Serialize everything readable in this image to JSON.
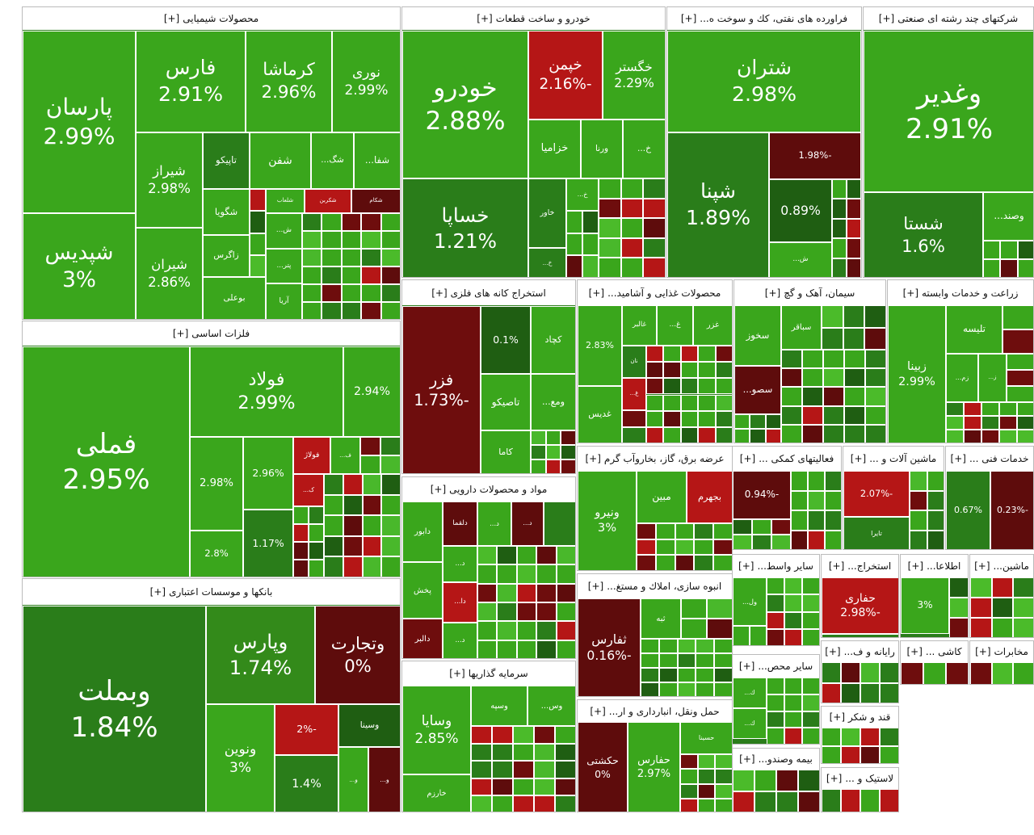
{
  "chart_data": {
    "type": "treemap",
    "expand_label": "[+]",
    "groups": [
      {
        "name": "محصولات شیمیایی",
        "categories": [
          "پارسان",
          "شپدیس",
          "فارس",
          "کرماشا",
          "نوری",
          "شیراز",
          "شیران",
          "تاپیکو",
          "شگویا",
          "زاگرس",
          "بوعلی",
          "شفن",
          "شگ...",
          "شفا...",
          "شلعاب",
          "شکربن",
          "شکام",
          "ش...",
          "پتر...",
          "آریا"
        ],
        "values": [
          2.99,
          3,
          2.91,
          2.96,
          2.99,
          2.98,
          2.86,
          null,
          null,
          null,
          null,
          null,
          null,
          null,
          null,
          null,
          null,
          null,
          null,
          null
        ],
        "value_labels": [
          "2.99%",
          "3%",
          "2.91%",
          "2.96%",
          "2.99%",
          "2.98%",
          "2.86%",
          null,
          null,
          null,
          null,
          null,
          null,
          null,
          null,
          null,
          null,
          null,
          null,
          null
        ],
        "colors": [
          "#3aa61c",
          "#3aa61c",
          "#3aa61c",
          "#3aa61c",
          "#3aa61c",
          "#3aa61c",
          "#3aa61c",
          "#2a7d1a",
          "#3aa61c",
          "#3aa61c",
          "#3aa61c",
          "#3aa61c",
          "#3aa61c",
          "#3aa61c",
          "#3aa61c",
          "#b51616",
          "#5e0c0c",
          "#3aa61c",
          "#3aa61c",
          "#3aa61c"
        ]
      },
      {
        "name": "فلزات اساسی",
        "categories": [
          "فملی",
          "فولاد",
          null,
          null,
          null,
          "فولاژ",
          "ف...",
          "ک...",
          null,
          null
        ],
        "values": [
          2.95,
          2.99,
          2.94,
          2.98,
          2.96,
          null,
          null,
          null,
          2.8,
          1.17
        ],
        "value_labels": [
          "2.95%",
          "2.99%",
          "2.94%",
          "2.98%",
          "2.96%",
          null,
          null,
          null,
          "2.8%",
          "1.17%"
        ],
        "colors": [
          "#3aa61c",
          "#3aa61c",
          "#3aa61c",
          "#3aa61c",
          "#3aa61c",
          "#b51616",
          "#3aa61c",
          "#b51616",
          "#3aa61c",
          "#2a7d1a"
        ]
      },
      {
        "name": "بانکها و موسسات اعتباری",
        "categories": [
          "وبملت",
          "وپارس",
          "وتجارت",
          "ونوین",
          null,
          "وسینا",
          null,
          "و...",
          "و..."
        ],
        "values": [
          1.84,
          1.74,
          0,
          3,
          -2,
          null,
          1.4,
          null,
          null
        ],
        "value_labels": [
          "1.84%",
          "1.74%",
          "0%",
          "3%",
          "-2%",
          null,
          "1.4%",
          null,
          null
        ],
        "colors": [
          "#2a7d1a",
          "#338a1a",
          "#5e0c0c",
          "#3aa61c",
          "#b51616",
          "#1f5e12",
          "#2a7d1a",
          "#3aa61c",
          "#5e0c0c"
        ]
      },
      {
        "name": "خودرو و ساخت قطعات",
        "categories": [
          "خودرو",
          "خساپا",
          "خپمن",
          "خگستر",
          "خزامیا",
          "ورنا",
          "خ...",
          "خاور",
          "خ...",
          "خ..."
        ],
        "values": [
          2.88,
          1.21,
          -2.16,
          2.29,
          null,
          null,
          null,
          null,
          null,
          null
        ],
        "value_labels": [
          "2.88%",
          "1.21%",
          "-2.16%",
          "2.29%",
          null,
          null,
          null,
          null,
          null,
          null
        ],
        "colors": [
          "#3aa61c",
          "#2a7d1a",
          "#b51616",
          "#3aa61c",
          "#3aa61c",
          "#3aa61c",
          "#3aa61c",
          "#2a7d1a",
          "#3aa61c",
          "#2a7d1a"
        ]
      },
      {
        "name": "فراورده های نفتی، کك و سوخت ه...",
        "categories": [
          "شتران",
          "شپنا",
          null,
          null,
          "ش..."
        ],
        "values": [
          2.98,
          1.89,
          -1.98,
          0.89,
          null
        ],
        "value_labels": [
          "2.98%",
          "1.89%",
          "-1.98%",
          "0.89%",
          null
        ],
        "colors": [
          "#3aa61c",
          "#2a7d1a",
          "#5e0c0c",
          "#1f5e12",
          "#3aa61c"
        ]
      },
      {
        "name": "شرکتهای چند رشته ای صنعتی",
        "categories": [
          "وغدیر",
          "شستا",
          "وصند..."
        ],
        "values": [
          2.91,
          1.6,
          null
        ],
        "value_labels": [
          "2.91%",
          "1.6%",
          null
        ],
        "colors": [
          "#3aa61c",
          "#2a7d1a",
          "#3aa61c"
        ]
      },
      {
        "name": "استخراج کانه های فلزی",
        "categories": [
          "فزر",
          null,
          "کچاد",
          "تاصیکو",
          "ومع...",
          "کاما"
        ],
        "values": [
          -1.73,
          0.1,
          null,
          null,
          null,
          null
        ],
        "value_labels": [
          "-1.73%",
          "0.1%",
          null,
          null,
          null,
          null
        ],
        "colors": [
          "#6e0d0d",
          "#1f5e12",
          "#3aa61c",
          "#3aa61c",
          "#3aa61c",
          "#3aa61c"
        ]
      },
      {
        "name": "مواد و محصولات دارویی",
        "categories": [
          "دابور",
          "دلقما",
          "د...",
          "د...",
          "پخش",
          "دالبر",
          "د...",
          "دا...",
          "د..."
        ],
        "values": [
          null,
          null,
          null,
          null,
          null,
          null,
          null,
          null,
          null
        ],
        "value_labels": [
          null,
          null,
          null,
          null,
          null,
          null,
          null,
          null,
          null
        ],
        "colors": [
          "#3aa61c",
          "#5e0c0c",
          "#3aa61c",
          "#5e0c0c",
          "#3aa61c",
          "#6e0d0d",
          "#3aa61c",
          "#b51616",
          "#3aa61c"
        ]
      },
      {
        "name": "سرمایه گذاریها",
        "categories": [
          "وسایا",
          "خارزم",
          "وسپه",
          "وس..."
        ],
        "values": [
          2.85,
          null,
          null,
          null
        ],
        "value_labels": [
          "2.85%",
          null,
          null,
          null
        ],
        "colors": [
          "#3aa61c",
          "#3aa61c",
          "#3aa61c",
          "#3aa61c"
        ]
      },
      {
        "name": "محصولات غذایی و آشامید...",
        "categories": [
          null,
          "غدیس",
          "غالبر",
          "غ...",
          "غزر",
          "نان",
          "غ..."
        ],
        "values": [
          2.83,
          null,
          null,
          null,
          null,
          null,
          null
        ],
        "value_labels": [
          "2.83%",
          null,
          null,
          null,
          null,
          null,
          null
        ],
        "colors": [
          "#3aa61c",
          "#3aa61c",
          "#3aa61c",
          "#3aa61c",
          "#3aa61c",
          "#2a7d1a",
          "#b51616"
        ]
      },
      {
        "name": "سیمان، آهک و گچ",
        "categories": [
          "سخوز",
          "سباقر",
          "سصو..."
        ],
        "values": [
          null,
          null,
          null
        ],
        "value_labels": [
          null,
          null,
          null
        ],
        "colors": [
          "#3aa61c",
          "#3aa61c",
          "#5e0c0c"
        ]
      },
      {
        "name": "زراعت و خدمات وابسته",
        "categories": [
          "زبینا",
          "تلیسه",
          "زم...",
          "ز..."
        ],
        "values": [
          2.99,
          null,
          null,
          null
        ],
        "value_labels": [
          "2.99%",
          null,
          null,
          null
        ],
        "colors": [
          "#3aa61c",
          "#3aa61c",
          "#3aa61c",
          "#3aa61c"
        ]
      },
      {
        "name": "عرضه برق، گاز، بخاروآب گرم",
        "categories": [
          "ونیرو",
          "مبین",
          "بجهرم"
        ],
        "values": [
          3,
          null,
          null
        ],
        "value_labels": [
          "3%",
          null,
          null
        ],
        "colors": [
          "#3aa61c",
          "#3aa61c",
          "#b51616"
        ]
      },
      {
        "name": "انبوه سازی، املاك و مستغ...",
        "categories": [
          "ثفارس",
          "ثبه"
        ],
        "values": [
          -0.16,
          null
        ],
        "value_labels": [
          "-0.16%",
          null
        ],
        "colors": [
          "#5e0c0c",
          "#3aa61c"
        ]
      },
      {
        "name": "حمل ونقل، انبارداری و ار...",
        "categories": [
          "حکشتی",
          "حفارس",
          "حسینا"
        ],
        "values": [
          0,
          2.97,
          null
        ],
        "value_labels": [
          "0%",
          "2.97%",
          null
        ],
        "colors": [
          "#5e0c0c",
          "#3aa61c",
          "#3aa61c"
        ]
      },
      {
        "name": "فعالیتهای کمکی ...",
        "categories": [
          null
        ],
        "values": [
          -0.94
        ],
        "value_labels": [
          "-0.94%"
        ],
        "colors": [
          "#5e0c0c"
        ]
      },
      {
        "name": "ماشین آلات و ...",
        "categories": [
          null,
          "تایرا"
        ],
        "values": [
          -2.07,
          null
        ],
        "value_labels": [
          "-2.07%",
          null
        ],
        "colors": [
          "#b51616",
          "#2a7d1a"
        ]
      },
      {
        "name": "خدمات فنی ...",
        "categories": [
          null,
          null
        ],
        "values": [
          0.67,
          -0.23
        ],
        "value_labels": [
          "0.67%",
          "-0.23%"
        ],
        "colors": [
          "#2a7d1a",
          "#5e0c0c"
        ]
      },
      {
        "name": "سایر واسط...",
        "categories": [
          "ول..."
        ],
        "values": [
          null
        ],
        "value_labels": [
          null
        ],
        "colors": [
          "#3aa61c"
        ]
      },
      {
        "name": "استخراج...",
        "categories": [
          "حفاری"
        ],
        "values": [
          -2.98
        ],
        "value_labels": [
          "-2.98%"
        ],
        "colors": [
          "#b51616"
        ]
      },
      {
        "name": "اطلاعا...",
        "categories": [
          null
        ],
        "values": [
          3
        ],
        "value_labels": [
          "3%"
        ],
        "colors": [
          "#3aa61c"
        ]
      },
      {
        "name": "ماشین...",
        "categories": [],
        "values": [],
        "value_labels": [],
        "colors": []
      },
      {
        "name": "سایر محص...",
        "categories": [
          "ك...",
          "ك..."
        ],
        "values": [
          null,
          null
        ],
        "value_labels": [
          null,
          null
        ],
        "colors": [
          "#3aa61c",
          "#3aa61c"
        ]
      },
      {
        "name": "رایانه و ف...",
        "categories": [],
        "values": [],
        "value_labels": [],
        "colors": []
      },
      {
        "name": "کاشی ...",
        "categories": [],
        "values": [],
        "value_labels": [],
        "colors": []
      },
      {
        "name": "مخابرات",
        "categories": [],
        "values": [],
        "value_labels": [],
        "colors": []
      },
      {
        "name": "بیمه وصندو...",
        "categories": [],
        "values": [],
        "value_labels": [],
        "colors": []
      },
      {
        "name": "قند و شکر",
        "categories": [],
        "values": [],
        "value_labels": [],
        "colors": []
      },
      {
        "name": "لاستیک و ...",
        "categories": [],
        "values": [],
        "value_labels": [],
        "colors": []
      }
    ]
  }
}
